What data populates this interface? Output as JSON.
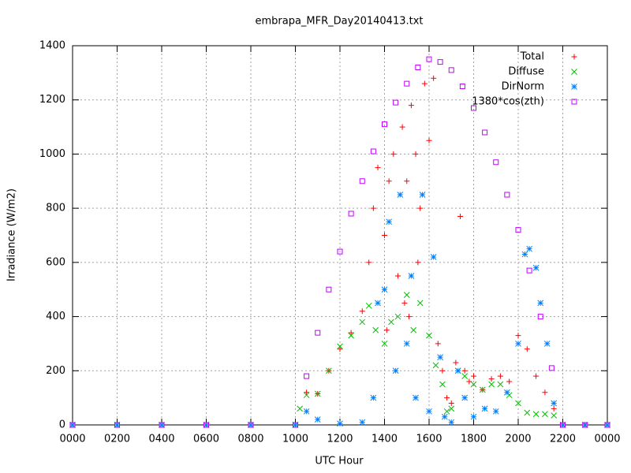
{
  "chart_data": {
    "type": "scatter",
    "title": "embrapa_MFR_Day20140413.txt",
    "x_label": "UTC Hour",
    "y_label": "Irradiance (W/m2)",
    "xlim": [
      0,
      24
    ],
    "ylim": [
      0,
      1400
    ],
    "xticks": [
      {
        "value": 0,
        "label": "0000"
      },
      {
        "value": 2,
        "label": "0200"
      },
      {
        "value": 4,
        "label": "0400"
      },
      {
        "value": 6,
        "label": "0600"
      },
      {
        "value": 8,
        "label": "0800"
      },
      {
        "value": 10,
        "label": "1000"
      },
      {
        "value": 12,
        "label": "1200"
      },
      {
        "value": 14,
        "label": "1400"
      },
      {
        "value": 16,
        "label": "1600"
      },
      {
        "value": 18,
        "label": "1800"
      },
      {
        "value": 20,
        "label": "2000"
      },
      {
        "value": 22,
        "label": "2200"
      },
      {
        "value": 24,
        "label": "0000"
      }
    ],
    "yticks": [
      0,
      200,
      400,
      600,
      800,
      1000,
      1200,
      1400
    ],
    "grid": true,
    "legend": "top-right",
    "series": [
      {
        "name": "Total",
        "color": "#ff0000",
        "marker": "plus",
        "x": [
          0,
          2,
          4,
          6,
          8,
          10,
          10.5,
          11,
          11.5,
          12,
          12.5,
          13,
          13.3,
          13.5,
          13.7,
          14,
          14.1,
          14.2,
          14.4,
          14.6,
          14.8,
          14.9,
          15,
          15.1,
          15.2,
          15.4,
          15.5,
          15.6,
          15.8,
          16,
          16.2,
          16.4,
          16.6,
          16.8,
          17,
          17.2,
          17.4,
          17.6,
          17.8,
          18,
          18.4,
          18.8,
          19.2,
          19.6,
          20,
          20.4,
          20.8,
          21.2,
          21.6,
          22,
          23,
          24
        ],
        "values": [
          0,
          0,
          0,
          0,
          0,
          0,
          120,
          115,
          200,
          280,
          340,
          420,
          600,
          800,
          950,
          700,
          350,
          900,
          1000,
          550,
          1100,
          450,
          900,
          400,
          1180,
          1000,
          600,
          800,
          1260,
          1050,
          1280,
          300,
          200,
          100,
          80,
          230,
          770,
          200,
          160,
          180,
          130,
          170,
          180,
          160,
          330,
          280,
          180,
          120,
          60,
          0,
          0,
          0
        ]
      },
      {
        "name": "Diffuse",
        "color": "#00c000",
        "marker": "cross",
        "x": [
          0,
          2,
          4,
          6,
          8,
          10,
          10.2,
          10.5,
          11,
          11.5,
          12,
          12.5,
          13,
          13.3,
          13.6,
          14,
          14.3,
          14.6,
          15,
          15.3,
          15.6,
          16,
          16.3,
          16.6,
          16.8,
          17,
          17.3,
          17.6,
          18,
          18.4,
          18.8,
          19.2,
          19.6,
          20,
          20.4,
          20.8,
          21.2,
          21.6,
          22,
          23,
          24
        ],
        "values": [
          0,
          0,
          0,
          0,
          0,
          0,
          60,
          110,
          115,
          200,
          290,
          330,
          380,
          440,
          350,
          300,
          380,
          400,
          480,
          350,
          450,
          330,
          220,
          150,
          50,
          60,
          200,
          180,
          150,
          130,
          150,
          150,
          110,
          80,
          45,
          40,
          40,
          35,
          0,
          0,
          0
        ]
      },
      {
        "name": "DirNorm",
        "color": "#0080ff",
        "marker": "star",
        "x": [
          0,
          2,
          4,
          6,
          8,
          10,
          10.5,
          11,
          12,
          13,
          13.5,
          13.7,
          14,
          14.2,
          14.5,
          14.7,
          15,
          15.2,
          15.4,
          15.7,
          16,
          16.2,
          16.5,
          16.7,
          17,
          17.3,
          17.6,
          18,
          18.5,
          19,
          19.5,
          20,
          20.3,
          20.5,
          20.8,
          21,
          21.3,
          21.6,
          22,
          23,
          24
        ],
        "values": [
          0,
          0,
          0,
          0,
          0,
          0,
          50,
          20,
          5,
          10,
          100,
          450,
          500,
          750,
          200,
          850,
          300,
          550,
          100,
          850,
          50,
          620,
          250,
          30,
          10,
          200,
          100,
          30,
          60,
          50,
          120,
          300,
          630,
          650,
          580,
          450,
          300,
          80,
          0,
          0,
          0
        ]
      },
      {
        "name": "1380*cos(zth)",
        "color": "#c000ff",
        "marker": "square",
        "x": [
          0,
          2,
          4,
          6,
          8,
          10,
          10.5,
          11,
          11.5,
          12,
          12.5,
          13,
          13.5,
          14,
          14.5,
          15,
          15.5,
          16,
          16.5,
          17,
          17.5,
          18,
          18.5,
          19,
          19.5,
          20,
          20.5,
          21,
          21.5,
          22,
          23,
          24
        ],
        "values": [
          0,
          0,
          0,
          0,
          0,
          0,
          180,
          340,
          500,
          640,
          780,
          900,
          1010,
          1110,
          1190,
          1260,
          1320,
          1350,
          1340,
          1310,
          1250,
          1170,
          1080,
          970,
          850,
          720,
          570,
          400,
          210,
          0,
          0,
          0
        ]
      }
    ]
  }
}
